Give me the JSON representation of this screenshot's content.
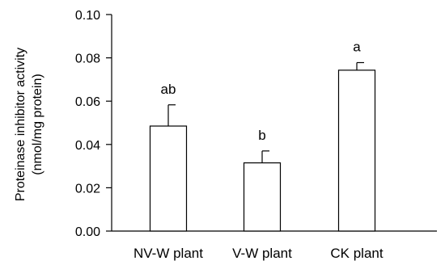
{
  "chart_data": {
    "type": "bar",
    "ylabel_lines": [
      "Proteinase inhibitor activity",
      "(nmol/mg protein)"
    ],
    "ylim": [
      0,
      0.1
    ],
    "yticks": [
      "0.00",
      "0.02",
      "0.04",
      "0.06",
      "0.08",
      "0.10"
    ],
    "grid": false,
    "categories": [
      "NV-W plant",
      "V-W plant",
      "CK plant"
    ],
    "values": [
      0.0485,
      0.0315,
      0.0743
    ],
    "errors": [
      0.0098,
      0.0055,
      0.0035
    ],
    "significance_letters": [
      "ab",
      "b",
      "a"
    ]
  }
}
